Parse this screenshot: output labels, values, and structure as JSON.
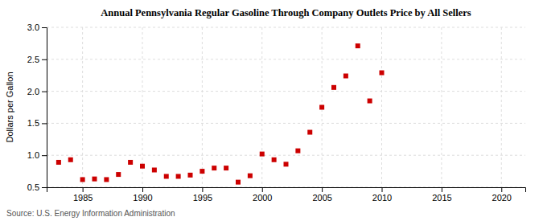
{
  "chart_data": {
    "type": "scatter",
    "title": "Annual Pennsylvania Regular Gasoline Through Company Outlets Price by All Sellers",
    "ylabel": "Dollars per Gallon",
    "annotations": [
      "Source: U.S. Energy Information Administration"
    ],
    "x": [
      1983,
      1984,
      1985,
      1986,
      1987,
      1988,
      1989,
      1990,
      1991,
      1992,
      1993,
      1994,
      1995,
      1996,
      1997,
      1998,
      1999,
      2000,
      2001,
      2002,
      2003,
      2004,
      2005,
      2006,
      2007,
      2008,
      2009,
      2010
    ],
    "values": [
      0.89,
      0.93,
      0.62,
      0.63,
      0.62,
      0.7,
      0.89,
      0.83,
      0.77,
      0.67,
      0.67,
      0.69,
      0.75,
      0.8,
      0.8,
      0.58,
      0.68,
      1.02,
      0.93,
      0.86,
      1.07,
      1.36,
      1.75,
      2.06,
      2.24,
      2.71,
      1.85,
      2.29
    ],
    "color": "#cc0000",
    "marker": "square",
    "xlim": [
      1982,
      2022
    ],
    "ylim": [
      0.5,
      3.0
    ],
    "xticks": [
      1985,
      1990,
      1995,
      2000,
      2005,
      2010,
      2015,
      2020
    ],
    "yticks": [
      0.5,
      {
        "value": 1.0,
        "label": "1.0"
      },
      1.5,
      {
        "value": 2.0,
        "label": "2.0"
      },
      2.5,
      {
        "value": 3.0,
        "label": "3.0"
      }
    ],
    "grid": true
  }
}
